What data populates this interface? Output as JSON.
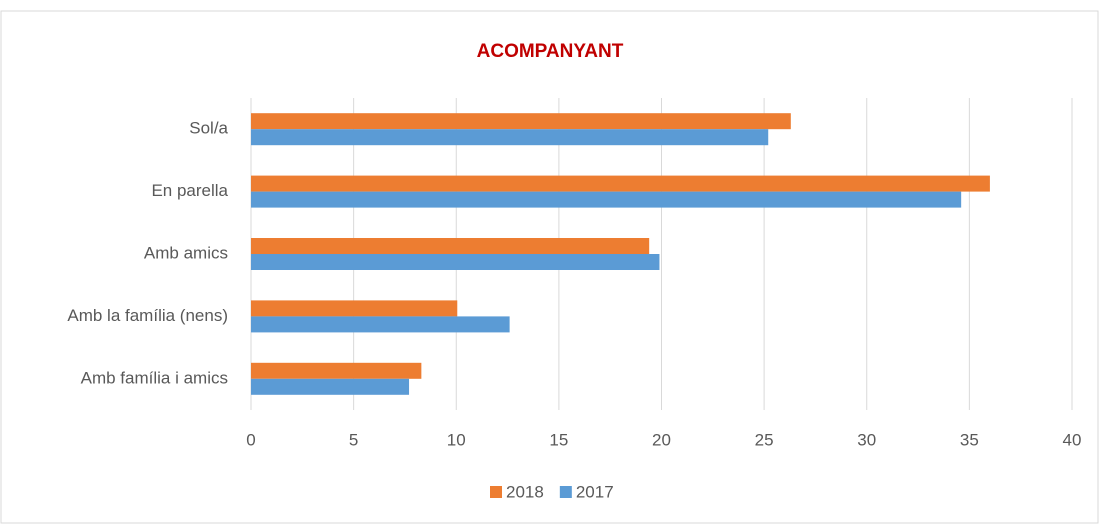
{
  "chart_data": {
    "type": "barh",
    "title": "ACOMPANYANT",
    "categories": [
      "Sol/a",
      "En parella",
      "Amb amics",
      "Amb la família (nens)",
      "Amb família i amics"
    ],
    "series": [
      {
        "name": "2018",
        "color": "#ed7d31",
        "values": [
          26.3,
          36.0,
          19.4,
          10.05,
          8.3
        ]
      },
      {
        "name": "2017",
        "color": "#5b9bd5",
        "values": [
          25.2,
          34.6,
          19.9,
          12.6,
          7.7
        ]
      }
    ],
    "xlim": [
      0,
      40
    ],
    "xticks": [
      0,
      5,
      10,
      15,
      20,
      25,
      30,
      35,
      40
    ],
    "grid": true,
    "legend": "bottom"
  }
}
